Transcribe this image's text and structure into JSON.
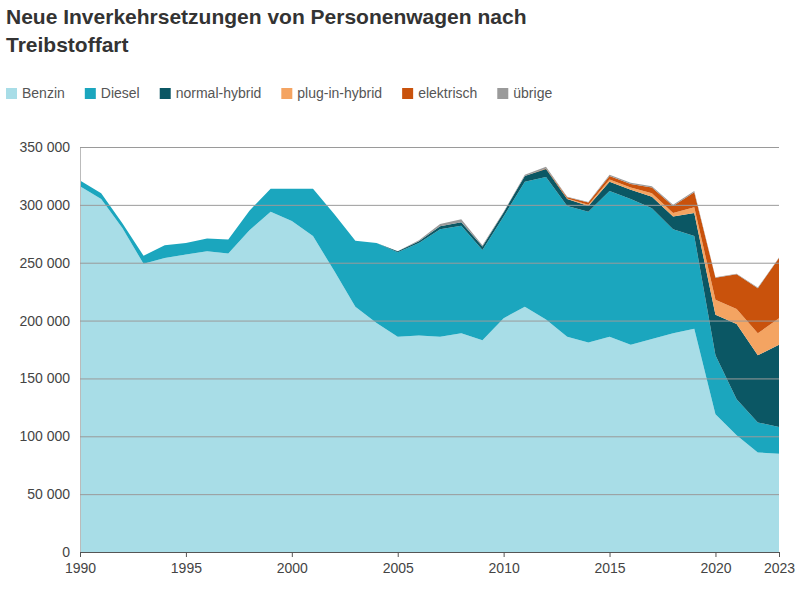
{
  "chart_data": {
    "type": "area",
    "title": "Neue Inverkehrsetzungen von Personenwagen nach Treibstoffart",
    "stacked": true,
    "grid": true,
    "legend": "top-left",
    "x": [
      1990,
      1991,
      1992,
      1993,
      1994,
      1995,
      1996,
      1997,
      1998,
      1999,
      2000,
      2001,
      2002,
      2003,
      2004,
      2005,
      2006,
      2007,
      2008,
      2009,
      2010,
      2011,
      2012,
      2013,
      2014,
      2015,
      2016,
      2017,
      2018,
      2019,
      2020,
      2021,
      2022,
      2023
    ],
    "xlim": [
      1990,
      2023
    ],
    "xticks": [
      1990,
      1995,
      2000,
      2005,
      2010,
      2015,
      2020,
      2023
    ],
    "ylim": [
      0,
      350000
    ],
    "yticks": [
      0,
      {
        "value": 50000,
        "label": "50 000"
      },
      {
        "value": 100000,
        "label": "100 000"
      },
      {
        "value": 150000,
        "label": "150 000"
      },
      {
        "value": 200000,
        "label": "200 000"
      },
      {
        "value": 250000,
        "label": "250 000"
      },
      {
        "value": 300000,
        "label": "300 000"
      },
      {
        "value": 350000,
        "label": "350 000"
      }
    ],
    "series": [
      {
        "name": "Benzin",
        "color": "#a8dde7",
        "values": [
          316000,
          305000,
          280000,
          249000,
          254000,
          257000,
          260000,
          258000,
          278000,
          294000,
          286000,
          273000,
          243000,
          212000,
          198000,
          186000,
          187000,
          186000,
          189000,
          183000,
          202000,
          212000,
          201000,
          186000,
          181000,
          186000,
          179000,
          184000,
          189000,
          193000,
          119000,
          101000,
          86000,
          85000
        ]
      },
      {
        "name": "Diesel",
        "color": "#1ba6be",
        "values": [
          5000,
          5000,
          4000,
          7000,
          11000,
          10000,
          11000,
          12000,
          17000,
          20000,
          28000,
          41000,
          49000,
          57000,
          69000,
          73000,
          80000,
          93000,
          93000,
          78000,
          88000,
          108000,
          123000,
          113000,
          113000,
          126000,
          126000,
          113000,
          90000,
          80000,
          51000,
          31000,
          26000,
          23000
        ]
      },
      {
        "name": "normal-hybrid",
        "color": "#0b5764",
        "values": [
          0,
          0,
          0,
          0,
          0,
          0,
          0,
          0,
          0,
          0,
          0,
          0,
          0,
          0,
          0,
          1000,
          1500,
          2500,
          3000,
          3000,
          3500,
          5000,
          7000,
          6000,
          5000,
          8000,
          8000,
          10000,
          11000,
          20000,
          35000,
          65000,
          58000,
          71000
        ]
      },
      {
        "name": "plug-in-hybrid",
        "color": "#f4a462",
        "values": [
          0,
          0,
          0,
          0,
          0,
          0,
          0,
          0,
          0,
          0,
          0,
          0,
          0,
          0,
          0,
          0,
          0,
          0,
          0,
          0,
          0,
          0,
          0,
          500,
          1000,
          2000,
          2000,
          3000,
          3000,
          5000,
          13000,
          13000,
          19000,
          23000
        ]
      },
      {
        "name": "elektrisch",
        "color": "#c9520c",
        "values": [
          0,
          0,
          0,
          0,
          0,
          0,
          0,
          0,
          0,
          0,
          0,
          0,
          0,
          0,
          0,
          0,
          0,
          0,
          0,
          0,
          0,
          0,
          500,
          1000,
          2000,
          3000,
          3000,
          5000,
          6000,
          13000,
          19000,
          30000,
          39000,
          52000
        ]
      },
      {
        "name": "übrige",
        "color": "#9a9a9a",
        "values": [
          0,
          0,
          0,
          0,
          0,
          0,
          0,
          0,
          0,
          0,
          0,
          0,
          0,
          0,
          0,
          0,
          1000,
          2000,
          2500,
          1000,
          500,
          1000,
          1500,
          500,
          500,
          1000,
          1000,
          1000,
          1000,
          1000,
          500,
          500,
          500,
          500
        ]
      }
    ]
  }
}
